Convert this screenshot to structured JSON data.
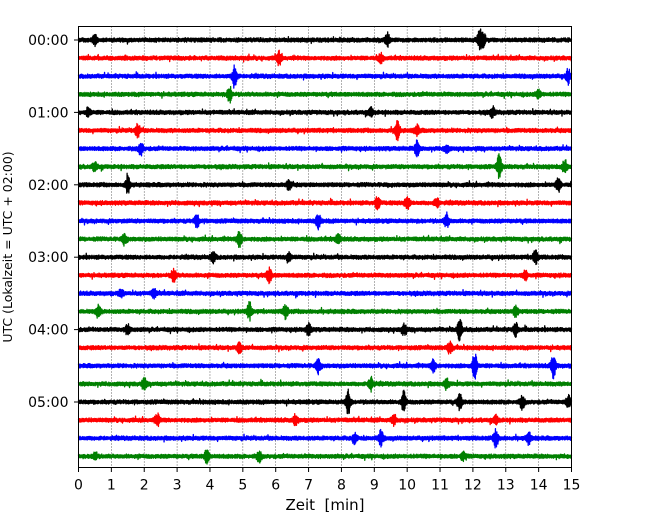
{
  "chart_data": {
    "type": "line",
    "title": "",
    "xlabel": "Zeit  [min]",
    "ylabel": "UTC (Lokalzeit = UTC + 02:00)",
    "xlim": [
      0,
      15
    ],
    "x_ticks": [
      0,
      1,
      2,
      3,
      4,
      5,
      6,
      7,
      8,
      9,
      10,
      11,
      12,
      13,
      14,
      15
    ],
    "x_tick_labels": [
      "0",
      "1",
      "2",
      "3",
      "4",
      "5",
      "6",
      "7",
      "8",
      "9",
      "10",
      "11",
      "12",
      "13",
      "14",
      "15"
    ],
    "y_ticks": [
      {
        "row": 0,
        "label": "00:00"
      },
      {
        "row": 4,
        "label": "01:00"
      },
      {
        "row": 8,
        "label": "02:00"
      },
      {
        "row": 12,
        "label": "03:00"
      },
      {
        "row": 16,
        "label": "04:00"
      },
      {
        "row": 20,
        "label": "05:00"
      }
    ],
    "grid": "vertical dotted",
    "trace_colors": [
      "#000000",
      "#ff0000",
      "#0000ff",
      "#008000"
    ],
    "row_minutes": 15,
    "rows": [
      {
        "start": "00:00",
        "color": "#000000",
        "events": [
          [
            0.5,
            0.3
          ],
          [
            9.4,
            0.45
          ],
          [
            12.2,
            0.6
          ],
          [
            12.3,
            0.5
          ]
        ]
      },
      {
        "start": "00:15",
        "color": "#ff0000",
        "events": [
          [
            6.1,
            0.45
          ],
          [
            9.2,
            0.3
          ]
        ]
      },
      {
        "start": "00:30",
        "color": "#0000ff",
        "events": [
          [
            4.75,
            0.85
          ],
          [
            14.9,
            0.5
          ]
        ]
      },
      {
        "start": "00:45",
        "color": "#008000",
        "events": [
          [
            4.6,
            0.55
          ],
          [
            14.0,
            0.3
          ]
        ]
      },
      {
        "start": "01:00",
        "color": "#000000",
        "events": [
          [
            0.3,
            0.3
          ],
          [
            8.9,
            0.3
          ],
          [
            12.6,
            0.35
          ]
        ]
      },
      {
        "start": "01:15",
        "color": "#ff0000",
        "events": [
          [
            1.8,
            0.5
          ],
          [
            9.7,
            0.65
          ],
          [
            10.3,
            0.35
          ]
        ]
      },
      {
        "start": "01:30",
        "color": "#0000ff",
        "events": [
          [
            1.9,
            0.45
          ],
          [
            10.3,
            0.5
          ],
          [
            11.2,
            0.3
          ]
        ]
      },
      {
        "start": "01:45",
        "color": "#008000",
        "events": [
          [
            0.5,
            0.3
          ],
          [
            12.8,
            0.85
          ],
          [
            14.8,
            0.45
          ]
        ]
      },
      {
        "start": "02:00",
        "color": "#000000",
        "events": [
          [
            1.5,
            0.6
          ],
          [
            6.4,
            0.35
          ],
          [
            14.6,
            0.45
          ]
        ]
      },
      {
        "start": "02:15",
        "color": "#ff0000",
        "events": [
          [
            9.1,
            0.45
          ],
          [
            10.0,
            0.55
          ],
          [
            10.9,
            0.35
          ]
        ]
      },
      {
        "start": "02:30",
        "color": "#0000ff",
        "events": [
          [
            3.6,
            0.45
          ],
          [
            7.3,
            0.5
          ],
          [
            11.2,
            0.5
          ]
        ]
      },
      {
        "start": "02:45",
        "color": "#008000",
        "events": [
          [
            1.4,
            0.4
          ],
          [
            4.9,
            0.6
          ],
          [
            7.9,
            0.35
          ]
        ]
      },
      {
        "start": "03:00",
        "color": "#000000",
        "events": [
          [
            4.1,
            0.35
          ],
          [
            6.4,
            0.3
          ],
          [
            13.9,
            0.5
          ]
        ]
      },
      {
        "start": "03:15",
        "color": "#ff0000",
        "events": [
          [
            2.9,
            0.45
          ],
          [
            5.8,
            0.55
          ],
          [
            13.6,
            0.3
          ]
        ]
      },
      {
        "start": "03:30",
        "color": "#0000ff",
        "events": [
          [
            1.3,
            0.25
          ],
          [
            2.3,
            0.3
          ]
        ]
      },
      {
        "start": "03:45",
        "color": "#008000",
        "events": [
          [
            0.6,
            0.4
          ],
          [
            5.2,
            0.6
          ],
          [
            6.3,
            0.5
          ],
          [
            13.3,
            0.4
          ]
        ]
      },
      {
        "start": "04:00",
        "color": "#000000",
        "events": [
          [
            1.5,
            0.35
          ],
          [
            7.0,
            0.45
          ],
          [
            9.9,
            0.4
          ],
          [
            11.6,
            0.75
          ],
          [
            13.3,
            0.45
          ]
        ]
      },
      {
        "start": "04:15",
        "color": "#ff0000",
        "events": [
          [
            4.9,
            0.35
          ],
          [
            11.3,
            0.45
          ]
        ]
      },
      {
        "start": "04:30",
        "color": "#0000ff",
        "events": [
          [
            7.3,
            0.55
          ],
          [
            10.8,
            0.45
          ],
          [
            12.05,
            1.0
          ],
          [
            14.45,
            0.8
          ]
        ]
      },
      {
        "start": "04:45",
        "color": "#008000",
        "events": [
          [
            2.0,
            0.35
          ],
          [
            8.9,
            0.5
          ],
          [
            11.2,
            0.3
          ]
        ]
      },
      {
        "start": "05:00",
        "color": "#000000",
        "events": [
          [
            8.2,
            0.9
          ],
          [
            9.9,
            0.7
          ],
          [
            11.6,
            0.55
          ],
          [
            13.5,
            0.45
          ],
          [
            14.9,
            0.4
          ]
        ]
      },
      {
        "start": "05:15",
        "color": "#ff0000",
        "events": [
          [
            2.4,
            0.4
          ],
          [
            6.6,
            0.35
          ],
          [
            9.6,
            0.35
          ],
          [
            12.7,
            0.3
          ]
        ]
      },
      {
        "start": "05:30",
        "color": "#0000ff",
        "events": [
          [
            8.4,
            0.35
          ],
          [
            9.2,
            0.5
          ],
          [
            12.7,
            0.65
          ],
          [
            13.7,
            0.4
          ]
        ]
      },
      {
        "start": "05:45",
        "color": "#008000",
        "events": [
          [
            0.5,
            0.3
          ],
          [
            3.9,
            0.45
          ],
          [
            5.5,
            0.35
          ],
          [
            11.7,
            0.3
          ]
        ]
      }
    ]
  }
}
